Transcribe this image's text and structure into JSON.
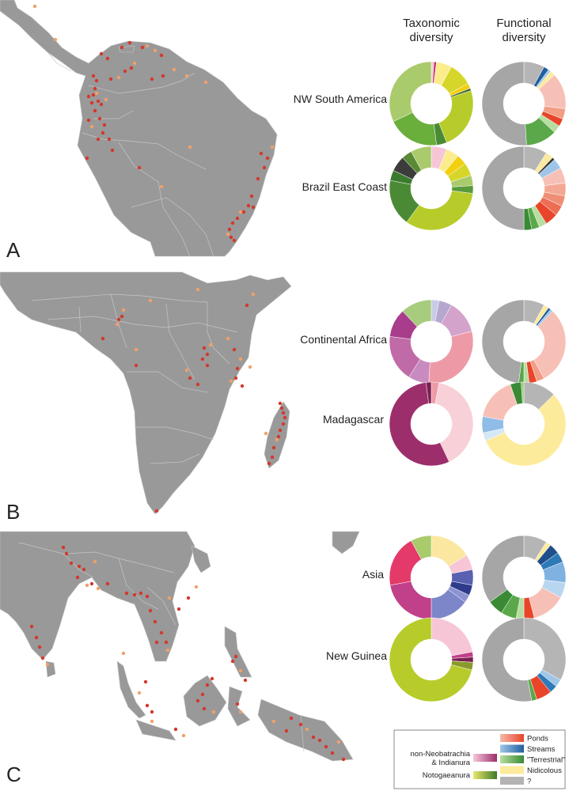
{
  "header": {
    "col1": [
      "Taxonomic",
      "diversity"
    ],
    "col2": [
      "Functional",
      "diversity"
    ]
  },
  "panel_letters": [
    "A",
    "B",
    "C"
  ],
  "legend": {
    "groups": [
      {
        "lines": [
          "non-Neobatrachia",
          "& Indianura"
        ],
        "grad_from": "#f7c6dc",
        "grad_to": "#9c2f6b"
      },
      {
        "lines": [
          "Notogaeanura"
        ],
        "grad_from": "#e9e86a",
        "grad_to": "#3f7a2a"
      }
    ],
    "items": [
      {
        "label": "Ponds",
        "c1": "#f7b8a8",
        "c2": "#e8452a"
      },
      {
        "label": "Streams",
        "c1": "#9fc6e8",
        "c2": "#1f5fa0"
      },
      {
        "label": "\"Terrestrial\"",
        "c1": "#b7dea0",
        "c2": "#3a8a35"
      },
      {
        "label": "Nidicolous",
        "c1": "#fdeb9c",
        "c2": "#fdeb9c"
      },
      {
        "label": "?",
        "c1": "#b3b3b3",
        "c2": "#b3b3b3"
      }
    ]
  },
  "colors": {
    "land": "#999999",
    "border": "#c6c6c6",
    "dot_red": "#d3382d",
    "dot_orange": "#f2a06a"
  },
  "chart_data": [
    {
      "type": "pie",
      "region": "NW South America",
      "panel": "A",
      "donut": "taxonomic",
      "slices": [
        {
          "value": 1,
          "color": "#f7c6d6"
        },
        {
          "value": 1,
          "color": "#c43a6e"
        },
        {
          "value": 6,
          "color": "#fbec8c"
        },
        {
          "value": 9,
          "color": "#d6d62a"
        },
        {
          "value": 2,
          "color": "#f2cf10"
        },
        {
          "value": 1,
          "color": "#4b6b2e"
        },
        {
          "value": 24,
          "color": "#b7cc2a"
        },
        {
          "value": 4,
          "color": "#4a8a35"
        },
        {
          "value": 20,
          "color": "#6aae3b"
        },
        {
          "value": 32,
          "color": "#aacb6b"
        }
      ]
    },
    {
      "type": "pie",
      "region": "NW South America",
      "panel": "A",
      "donut": "functional",
      "slices": [
        {
          "value": 8,
          "color": "#b5b5b5"
        },
        {
          "value": 2,
          "color": "#1f5fa0"
        },
        {
          "value": 1,
          "color": "#9fc6e8"
        },
        {
          "value": 2,
          "color": "#fbeaa0"
        },
        {
          "value": 14,
          "color": "#f7c0b6"
        },
        {
          "value": 4,
          "color": "#f29e84"
        },
        {
          "value": 3,
          "color": "#e8452a"
        },
        {
          "value": 3,
          "color": "#b7dea0"
        },
        {
          "value": 12,
          "color": "#5ba84a"
        },
        {
          "value": 51,
          "color": "#a6a6a6"
        }
      ]
    },
    {
      "type": "pie",
      "region": "Brazil East Coast",
      "panel": "A",
      "donut": "taxonomic",
      "slices": [
        {
          "value": 6,
          "color": "#f7c6d6"
        },
        {
          "value": 5,
          "color": "#fbec8c"
        },
        {
          "value": 4,
          "color": "#f2cf10"
        },
        {
          "value": 5,
          "color": "#d6d62a"
        },
        {
          "value": 4,
          "color": "#aacb6b"
        },
        {
          "value": 3,
          "color": "#5a9a3b"
        },
        {
          "value": 33,
          "color": "#b7cc2a"
        },
        {
          "value": 18,
          "color": "#4a8a35"
        },
        {
          "value": 4,
          "color": "#3a7a2e"
        },
        {
          "value": 6,
          "color": "#3c3c3c"
        },
        {
          "value": 4,
          "color": "#5a8a35"
        },
        {
          "value": 8,
          "color": "#aacb6b"
        }
      ]
    },
    {
      "type": "pie",
      "region": "Brazil East Coast",
      "panel": "A",
      "donut": "functional",
      "slices": [
        {
          "value": 9,
          "color": "#b5b5b5"
        },
        {
          "value": 3,
          "color": "#fbeaa0"
        },
        {
          "value": 1,
          "color": "#333333"
        },
        {
          "value": 4,
          "color": "#9fc6e8"
        },
        {
          "value": 6,
          "color": "#f7c0b6"
        },
        {
          "value": 5,
          "color": "#f4a893"
        },
        {
          "value": 4,
          "color": "#ef8e74"
        },
        {
          "value": 4,
          "color": "#ec6f54"
        },
        {
          "value": 5,
          "color": "#e8452a"
        },
        {
          "value": 3,
          "color": "#b7dea0"
        },
        {
          "value": 3,
          "color": "#5ba84a"
        },
        {
          "value": 3,
          "color": "#3a8a35"
        },
        {
          "value": 50,
          "color": "#a6a6a6"
        }
      ]
    },
    {
      "type": "pie",
      "region": "Continental Africa",
      "panel": "B",
      "donut": "taxonomic",
      "slices": [
        {
          "value": 3,
          "color": "#c9cbe6"
        },
        {
          "value": 5,
          "color": "#b6a7d1"
        },
        {
          "value": 13,
          "color": "#d3a3cb"
        },
        {
          "value": 30,
          "color": "#ee9aa6"
        },
        {
          "value": 8,
          "color": "#c98bbf"
        },
        {
          "value": 18,
          "color": "#c06aa8"
        },
        {
          "value": 11,
          "color": "#a83d8b"
        },
        {
          "value": 12,
          "color": "#a8cc7e"
        }
      ]
    },
    {
      "type": "pie",
      "region": "Continental Africa",
      "panel": "B",
      "donut": "functional",
      "slices": [
        {
          "value": 8,
          "color": "#b5b5b5"
        },
        {
          "value": 2,
          "color": "#fbeaa0"
        },
        {
          "value": 1,
          "color": "#1f5fa0"
        },
        {
          "value": 1,
          "color": "#9fc6e8"
        },
        {
          "value": 30,
          "color": "#f7c0b6"
        },
        {
          "value": 3,
          "color": "#f29e84"
        },
        {
          "value": 3,
          "color": "#e8452a"
        },
        {
          "value": 2,
          "color": "#b7dea0"
        },
        {
          "value": 2,
          "color": "#5ba84a"
        },
        {
          "value": 48,
          "color": "#a6a6a6"
        }
      ]
    },
    {
      "type": "pie",
      "region": "Madagascar",
      "panel": "B",
      "donut": "taxonomic",
      "slices": [
        {
          "value": 3,
          "color": "#ee9aa6"
        },
        {
          "value": 40,
          "color": "#f7d0d8"
        },
        {
          "value": 55,
          "color": "#9c2f6b"
        },
        {
          "value": 2,
          "color": "#7a2050"
        }
      ]
    },
    {
      "type": "pie",
      "region": "Madagascar",
      "panel": "B",
      "donut": "functional",
      "slices": [
        {
          "value": 12,
          "color": "#b5b5b5"
        },
        {
          "value": 53,
          "color": "#fdeb9c"
        },
        {
          "value": 3,
          "color": "#d4e8f6"
        },
        {
          "value": 6,
          "color": "#8fbde8"
        },
        {
          "value": 16,
          "color": "#f7c0b6"
        },
        {
          "value": 4,
          "color": "#3a8a35"
        },
        {
          "value": 1,
          "color": "#9acd7e"
        }
      ]
    },
    {
      "type": "pie",
      "region": "Asia",
      "panel": "C",
      "donut": "taxonomic",
      "slices": [
        {
          "value": 16,
          "color": "#fbe7a0"
        },
        {
          "value": 6,
          "color": "#f7c6d6"
        },
        {
          "value": 6,
          "color": "#5a60b0"
        },
        {
          "value": 4,
          "color": "#2e3a8a"
        },
        {
          "value": 3,
          "color": "#8c93d0"
        },
        {
          "value": 15,
          "color": "#7d86c8"
        },
        {
          "value": 22,
          "color": "#c0408a"
        },
        {
          "value": 20,
          "color": "#e43a6a"
        },
        {
          "value": 8,
          "color": "#aacb6b"
        }
      ]
    },
    {
      "type": "pie",
      "region": "Asia",
      "panel": "C",
      "donut": "functional",
      "slices": [
        {
          "value": 9,
          "color": "#b5b5b5"
        },
        {
          "value": 2,
          "color": "#fbeaa0"
        },
        {
          "value": 4,
          "color": "#1f4f8a"
        },
        {
          "value": 4,
          "color": "#2e7ab8"
        },
        {
          "value": 8,
          "color": "#7fb2e0"
        },
        {
          "value": 6,
          "color": "#b9d6f0"
        },
        {
          "value": 13,
          "color": "#f7c0b6"
        },
        {
          "value": 4,
          "color": "#e8452a"
        },
        {
          "value": 3,
          "color": "#b7dea0"
        },
        {
          "value": 6,
          "color": "#5ba84a"
        },
        {
          "value": 6,
          "color": "#3a8a35"
        },
        {
          "value": 35,
          "color": "#a6a6a6"
        }
      ]
    },
    {
      "type": "pie",
      "region": "New Guinea",
      "panel": "C",
      "donut": "taxonomic",
      "slices": [
        {
          "value": 22,
          "color": "#f7c6d6"
        },
        {
          "value": 2,
          "color": "#c0408a"
        },
        {
          "value": 2,
          "color": "#7a2050"
        },
        {
          "value": 3,
          "color": "#8a9a2a"
        },
        {
          "value": 71,
          "color": "#b7cc2a"
        }
      ]
    },
    {
      "type": "pie",
      "region": "New Guinea",
      "panel": "C",
      "donut": "functional",
      "slices": [
        {
          "value": 33,
          "color": "#b5b5b5"
        },
        {
          "value": 3,
          "color": "#9fc6e8"
        },
        {
          "value": 3,
          "color": "#2e7ab8"
        },
        {
          "value": 6,
          "color": "#e8452a"
        },
        {
          "value": 2,
          "color": "#5ba84a"
        },
        {
          "value": 53,
          "color": "#a6a6a6"
        }
      ]
    }
  ]
}
